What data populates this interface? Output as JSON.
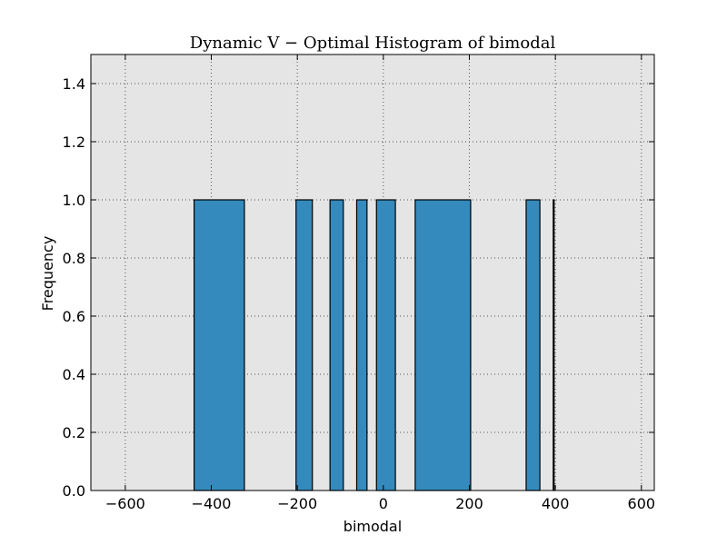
{
  "chart_data": {
    "type": "bar",
    "title": "Dynamic V − Optimal Histogram of bimodal",
    "xlabel": "bimodal",
    "ylabel": "Frequency",
    "xlim": [
      -680,
      630
    ],
    "ylim": [
      0,
      1.5
    ],
    "xticks": [
      -600,
      -400,
      -200,
      0,
      200,
      400,
      600
    ],
    "xtick_labels": [
      "−600",
      "−400",
      "−200",
      "0",
      "200",
      "400",
      "600"
    ],
    "yticks": [
      0.0,
      0.2,
      0.4,
      0.6,
      0.8,
      1.0,
      1.2,
      1.4
    ],
    "ytick_labels": [
      "0.0",
      "0.2",
      "0.4",
      "0.6",
      "0.8",
      "1.0",
      "1.2",
      "1.4"
    ],
    "grid": true,
    "colors": {
      "bar": "#348abd",
      "edge": "#000000",
      "background": "#e5e5e5",
      "grid": "#555555"
    },
    "bins": [
      {
        "x0": -440,
        "x1": -323,
        "value": 1.0
      },
      {
        "x0": -203,
        "x1": -165,
        "value": 1.0
      },
      {
        "x0": -124,
        "x1": -93,
        "value": 1.0
      },
      {
        "x0": -62,
        "x1": -38,
        "value": 1.0
      },
      {
        "x0": -16,
        "x1": 28,
        "value": 1.0
      },
      {
        "x0": 74,
        "x1": 203,
        "value": 1.0
      },
      {
        "x0": 332,
        "x1": 364,
        "value": 1.0
      },
      {
        "x0": 395,
        "x1": 396,
        "value": 1.0
      }
    ]
  }
}
